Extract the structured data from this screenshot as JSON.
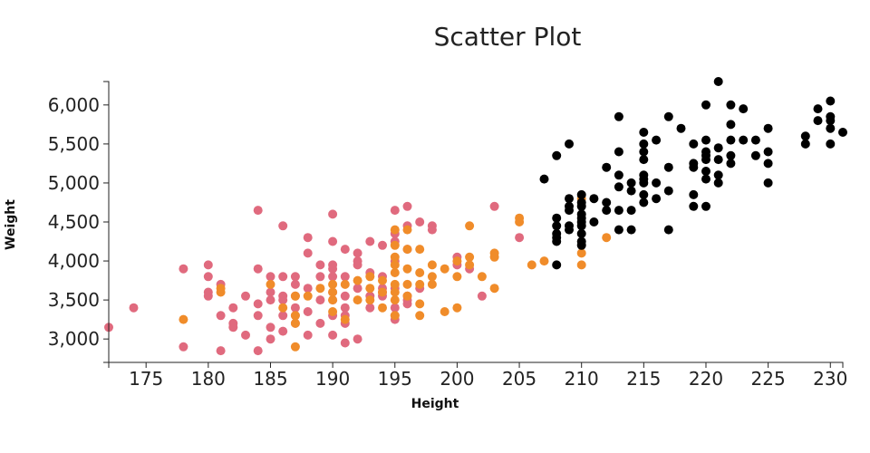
{
  "chart_data": {
    "type": "scatter",
    "title": "Scatter Plot",
    "xlabel": "Height",
    "ylabel": "Weight",
    "xlim": [
      172,
      231
    ],
    "ylim": [
      2700,
      6300
    ],
    "x_ticks": [
      175,
      180,
      185,
      190,
      195,
      200,
      205,
      210,
      215,
      220,
      225,
      230
    ],
    "x_tick_labels": [
      "175",
      "180",
      "185",
      "190",
      "195",
      "200",
      "205",
      "210",
      "215",
      "220",
      "225",
      "230"
    ],
    "y_ticks": [
      3000,
      3500,
      4000,
      4500,
      5000,
      5500,
      6000
    ],
    "y_tick_labels": [
      "3,000",
      "3,500",
      "4,000",
      "4,500",
      "5,000",
      "5,500",
      "6,000"
    ],
    "grid": false,
    "legend": "none",
    "series": [
      {
        "color": "#e06a7e",
        "points": [
          [
            172,
            3150
          ],
          [
            174,
            3400
          ],
          [
            178,
            3900
          ],
          [
            178,
            2900
          ],
          [
            180,
            3950
          ],
          [
            180,
            3800
          ],
          [
            180,
            3600
          ],
          [
            180,
            3550
          ],
          [
            181,
            3700
          ],
          [
            181,
            3300
          ],
          [
            181,
            2850
          ],
          [
            182,
            3200
          ],
          [
            182,
            3150
          ],
          [
            182,
            3400
          ],
          [
            183,
            3550
          ],
          [
            183,
            3050
          ],
          [
            184,
            4650
          ],
          [
            184,
            3900
          ],
          [
            184,
            3450
          ],
          [
            184,
            3300
          ],
          [
            184,
            2850
          ],
          [
            185,
            3800
          ],
          [
            185,
            3600
          ],
          [
            185,
            3500
          ],
          [
            185,
            3150
          ],
          [
            185,
            3000
          ],
          [
            186,
            4450
          ],
          [
            186,
            3800
          ],
          [
            186,
            3550
          ],
          [
            186,
            3500
          ],
          [
            186,
            3300
          ],
          [
            186,
            3100
          ],
          [
            187,
            3800
          ],
          [
            187,
            3700
          ],
          [
            187,
            3550
          ],
          [
            187,
            3400
          ],
          [
            187,
            3300
          ],
          [
            187,
            3200
          ],
          [
            188,
            4300
          ],
          [
            188,
            4100
          ],
          [
            188,
            3650
          ],
          [
            188,
            3350
          ],
          [
            188,
            3050
          ],
          [
            189,
            3950
          ],
          [
            189,
            3800
          ],
          [
            189,
            3500
          ],
          [
            189,
            3200
          ],
          [
            190,
            4600
          ],
          [
            190,
            4250
          ],
          [
            190,
            3950
          ],
          [
            190,
            3900
          ],
          [
            190,
            3800
          ],
          [
            190,
            3600
          ],
          [
            190,
            3500
          ],
          [
            190,
            3300
          ],
          [
            190,
            3050
          ],
          [
            191,
            4150
          ],
          [
            191,
            3800
          ],
          [
            191,
            3550
          ],
          [
            191,
            3400
          ],
          [
            191,
            3300
          ],
          [
            191,
            3200
          ],
          [
            191,
            2950
          ],
          [
            192,
            4100
          ],
          [
            192,
            4000
          ],
          [
            192,
            3950
          ],
          [
            192,
            3650
          ],
          [
            192,
            3000
          ],
          [
            193,
            4250
          ],
          [
            193,
            3850
          ],
          [
            193,
            3550
          ],
          [
            193,
            3400
          ],
          [
            194,
            4200
          ],
          [
            194,
            3800
          ],
          [
            194,
            3650
          ],
          [
            194,
            3600
          ],
          [
            194,
            3550
          ],
          [
            195,
            4650
          ],
          [
            195,
            4350
          ],
          [
            195,
            4250
          ],
          [
            195,
            4000
          ],
          [
            195,
            3650
          ],
          [
            195,
            3400
          ],
          [
            195,
            3300
          ],
          [
            195,
            3250
          ],
          [
            196,
            4700
          ],
          [
            196,
            4450
          ],
          [
            196,
            4150
          ],
          [
            196,
            3550
          ],
          [
            196,
            3500
          ],
          [
            196,
            3450
          ],
          [
            197,
            4500
          ],
          [
            197,
            3650
          ],
          [
            198,
            4450
          ],
          [
            198,
            4400
          ],
          [
            200,
            4050
          ],
          [
            200,
            3950
          ],
          [
            201,
            3900
          ],
          [
            202,
            3550
          ],
          [
            203,
            4700
          ],
          [
            205,
            4300
          ]
        ]
      },
      {
        "color": "#f08c2a",
        "points": [
          [
            178,
            3250
          ],
          [
            181,
            3650
          ],
          [
            181,
            3600
          ],
          [
            185,
            3700
          ],
          [
            186,
            3400
          ],
          [
            187,
            3550
          ],
          [
            187,
            3300
          ],
          [
            187,
            3200
          ],
          [
            187,
            2900
          ],
          [
            188,
            3550
          ],
          [
            189,
            3650
          ],
          [
            190,
            3700
          ],
          [
            190,
            3600
          ],
          [
            190,
            3500
          ],
          [
            190,
            3350
          ],
          [
            191,
            3700
          ],
          [
            191,
            3250
          ],
          [
            192,
            3750
          ],
          [
            192,
            3500
          ],
          [
            193,
            3800
          ],
          [
            193,
            3650
          ],
          [
            193,
            3500
          ],
          [
            194,
            3750
          ],
          [
            194,
            3600
          ],
          [
            194,
            3400
          ],
          [
            195,
            4400
          ],
          [
            195,
            4200
          ],
          [
            195,
            4050
          ],
          [
            195,
            3950
          ],
          [
            195,
            3850
          ],
          [
            195,
            3700
          ],
          [
            195,
            3600
          ],
          [
            195,
            3500
          ],
          [
            195,
            3300
          ],
          [
            196,
            4400
          ],
          [
            196,
            4150
          ],
          [
            196,
            3900
          ],
          [
            196,
            3700
          ],
          [
            196,
            3550
          ],
          [
            197,
            4150
          ],
          [
            197,
            3850
          ],
          [
            197,
            3700
          ],
          [
            197,
            3450
          ],
          [
            197,
            3300
          ],
          [
            198,
            3950
          ],
          [
            198,
            3800
          ],
          [
            198,
            3700
          ],
          [
            199,
            3900
          ],
          [
            199,
            3350
          ],
          [
            200,
            4000
          ],
          [
            200,
            3800
          ],
          [
            200,
            3400
          ],
          [
            201,
            4450
          ],
          [
            201,
            4050
          ],
          [
            201,
            3950
          ],
          [
            202,
            3800
          ],
          [
            203,
            4100
          ],
          [
            203,
            4050
          ],
          [
            203,
            3650
          ],
          [
            205,
            4550
          ],
          [
            205,
            4500
          ],
          [
            206,
            3950
          ],
          [
            207,
            4000
          ],
          [
            210,
            4800
          ],
          [
            210,
            4100
          ],
          [
            210,
            3950
          ],
          [
            212,
            4300
          ]
        ]
      },
      {
        "color": "#000000",
        "points": [
          [
            207,
            5050
          ],
          [
            208,
            5350
          ],
          [
            208,
            4550
          ],
          [
            208,
            4450
          ],
          [
            208,
            4350
          ],
          [
            208,
            4300
          ],
          [
            208,
            4250
          ],
          [
            208,
            3950
          ],
          [
            209,
            5500
          ],
          [
            209,
            4800
          ],
          [
            209,
            4700
          ],
          [
            209,
            4650
          ],
          [
            209,
            4450
          ],
          [
            209,
            4400
          ],
          [
            210,
            4850
          ],
          [
            210,
            4750
          ],
          [
            210,
            4700
          ],
          [
            210,
            4600
          ],
          [
            210,
            4550
          ],
          [
            210,
            4500
          ],
          [
            210,
            4450
          ],
          [
            210,
            4350
          ],
          [
            210,
            4250
          ],
          [
            210,
            4200
          ],
          [
            211,
            4800
          ],
          [
            211,
            4500
          ],
          [
            212,
            5200
          ],
          [
            212,
            4750
          ],
          [
            212,
            4650
          ],
          [
            213,
            5850
          ],
          [
            213,
            5400
          ],
          [
            213,
            5100
          ],
          [
            213,
            4950
          ],
          [
            213,
            4650
          ],
          [
            213,
            4400
          ],
          [
            214,
            5000
          ],
          [
            214,
            4900
          ],
          [
            214,
            4650
          ],
          [
            214,
            4400
          ],
          [
            215,
            5650
          ],
          [
            215,
            5500
          ],
          [
            215,
            5400
          ],
          [
            215,
            5300
          ],
          [
            215,
            5100
          ],
          [
            215,
            5050
          ],
          [
            215,
            5000
          ],
          [
            215,
            4850
          ],
          [
            215,
            4750
          ],
          [
            216,
            5550
          ],
          [
            216,
            5000
          ],
          [
            216,
            4800
          ],
          [
            217,
            5850
          ],
          [
            217,
            5200
          ],
          [
            217,
            4900
          ],
          [
            217,
            4400
          ],
          [
            218,
            5700
          ],
          [
            219,
            5500
          ],
          [
            219,
            5250
          ],
          [
            219,
            5200
          ],
          [
            219,
            4850
          ],
          [
            219,
            4700
          ],
          [
            220,
            6000
          ],
          [
            220,
            5550
          ],
          [
            220,
            5400
          ],
          [
            220,
            5350
          ],
          [
            220,
            5300
          ],
          [
            220,
            5150
          ],
          [
            220,
            5050
          ],
          [
            220,
            4700
          ],
          [
            221,
            6300
          ],
          [
            221,
            5450
          ],
          [
            221,
            5300
          ],
          [
            221,
            5100
          ],
          [
            221,
            5000
          ],
          [
            222,
            6000
          ],
          [
            222,
            5750
          ],
          [
            222,
            5550
          ],
          [
            222,
            5350
          ],
          [
            222,
            5250
          ],
          [
            223,
            5950
          ],
          [
            223,
            5550
          ],
          [
            224,
            5550
          ],
          [
            224,
            5350
          ],
          [
            225,
            5700
          ],
          [
            225,
            5400
          ],
          [
            225,
            5250
          ],
          [
            225,
            5000
          ],
          [
            228,
            5600
          ],
          [
            228,
            5500
          ],
          [
            229,
            5950
          ],
          [
            229,
            5800
          ],
          [
            230,
            6050
          ],
          [
            230,
            5850
          ],
          [
            230,
            5800
          ],
          [
            230,
            5700
          ],
          [
            230,
            5500
          ],
          [
            231,
            5650
          ]
        ]
      }
    ]
  }
}
